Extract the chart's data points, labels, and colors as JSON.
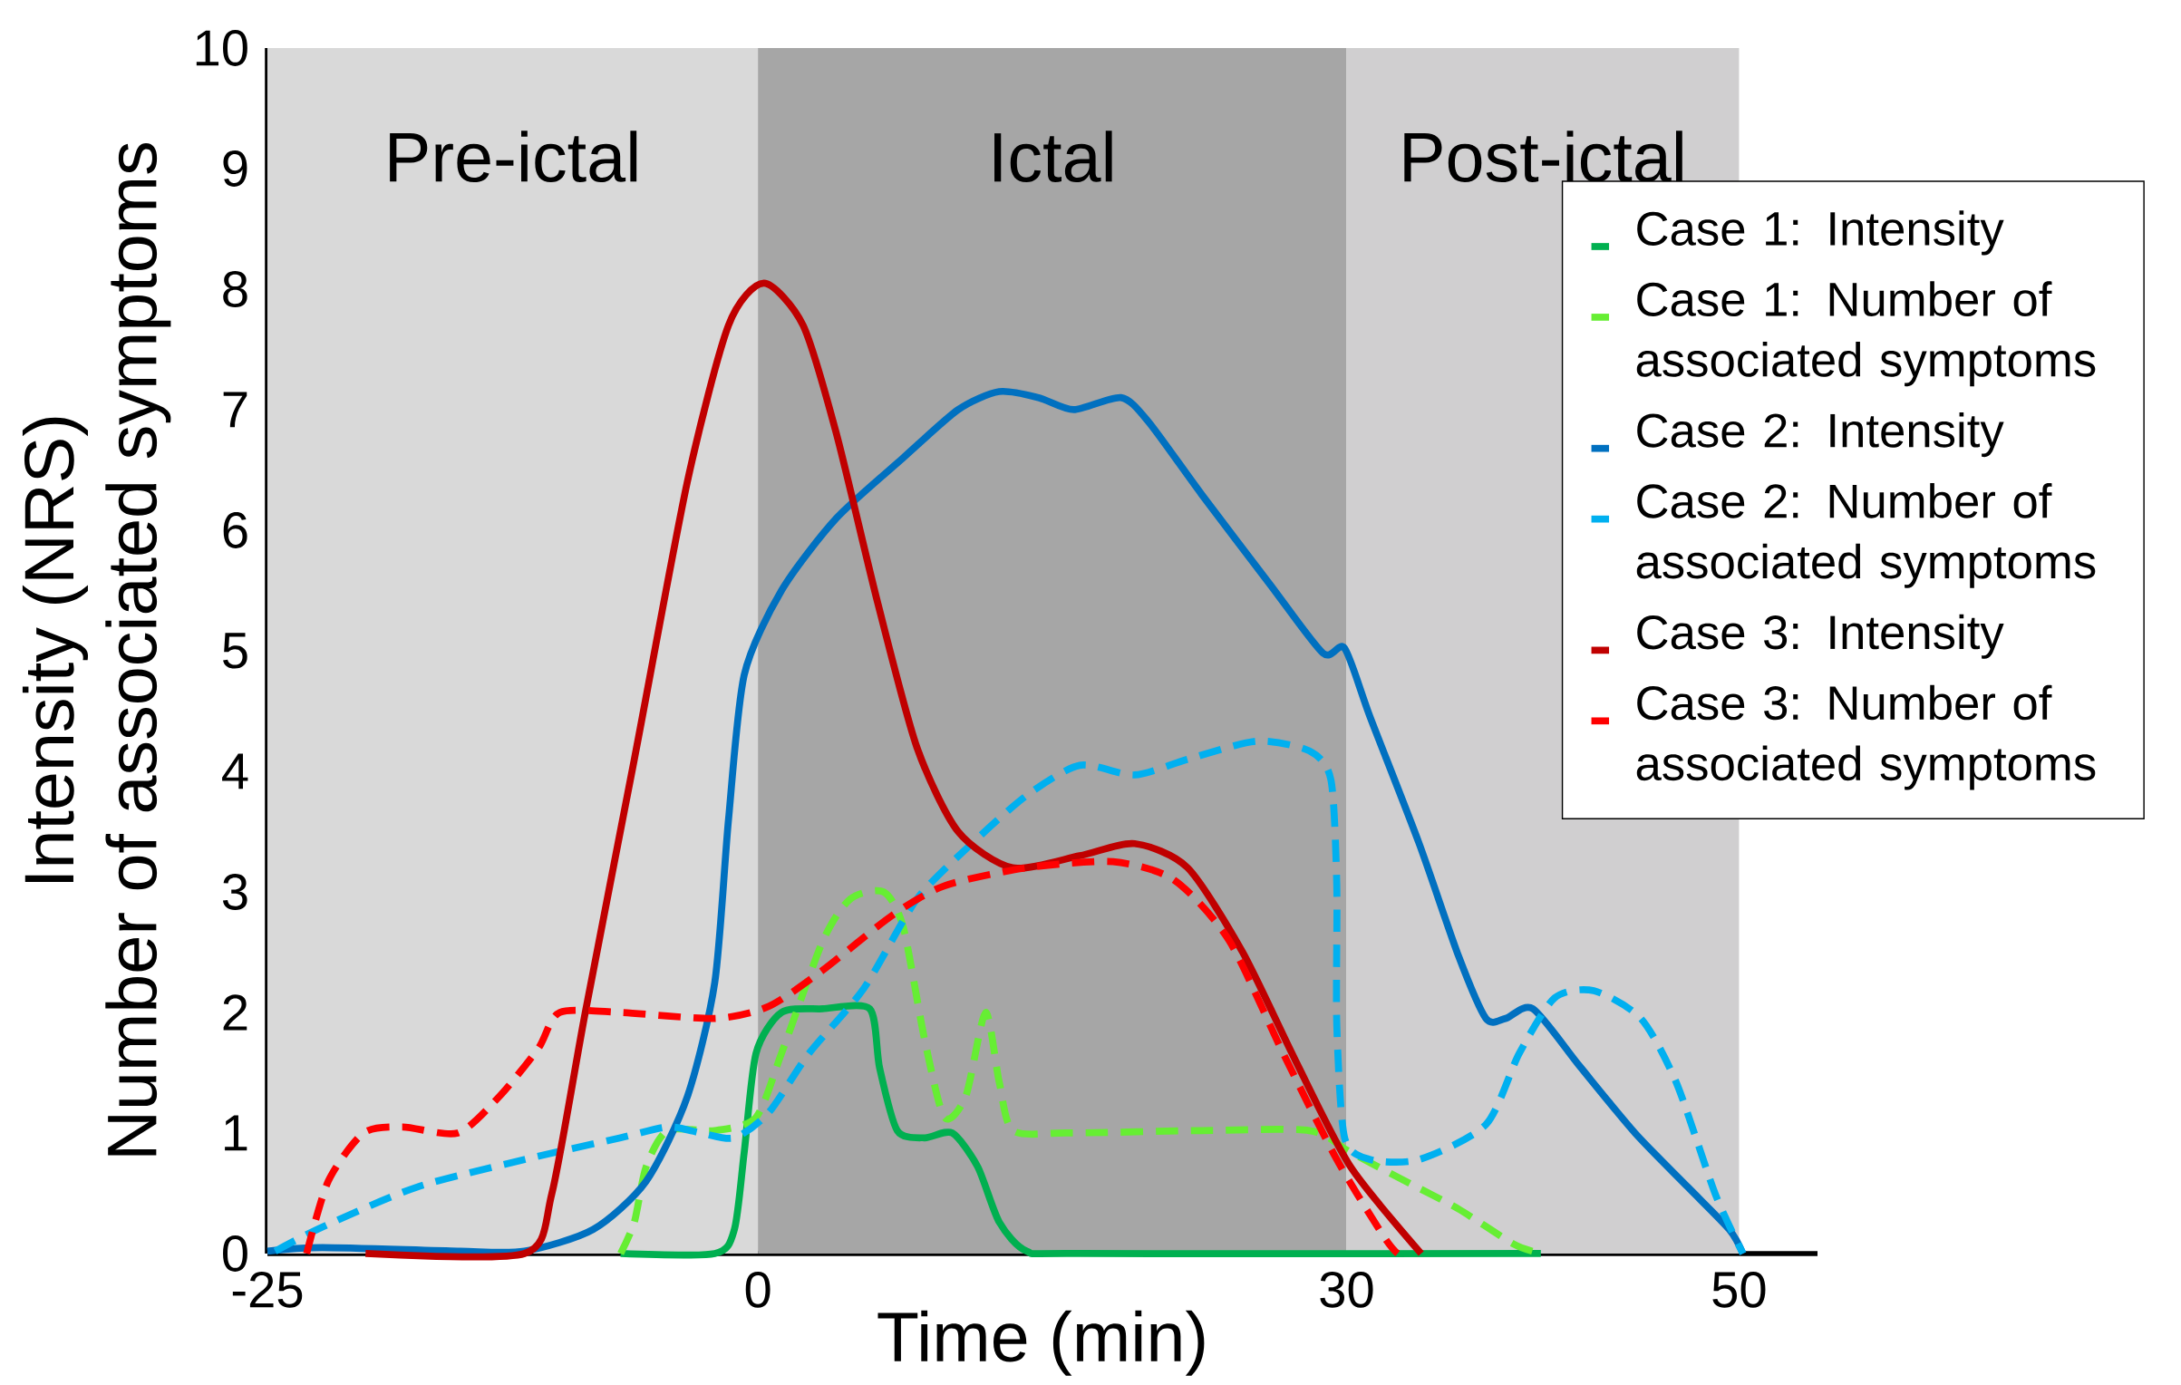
{
  "chart_data": {
    "type": "line",
    "xlabel": "Time (min)",
    "ylabel": [
      "Intensity (NRS)",
      "Number of associated symptoms"
    ],
    "xlim": [
      -25,
      54
    ],
    "ylim": [
      0,
      10
    ],
    "xticks": [
      -25,
      0,
      30,
      50
    ],
    "yticks": [
      0,
      1,
      2,
      3,
      4,
      5,
      6,
      7,
      8,
      9,
      10
    ],
    "legend": "right",
    "grid": false,
    "bands": [
      {
        "axis": "x",
        "from": -25,
        "to": 0,
        "label": "Pre-ictal",
        "color": "#d9d9d9"
      },
      {
        "axis": "x",
        "from": 0,
        "to": 30,
        "label": "Ictal",
        "color": "#a6a6a6"
      },
      {
        "axis": "x",
        "from": 30,
        "to": 50,
        "label": "Post-ictal",
        "color": "#d0cfd0"
      }
    ],
    "series": [
      {
        "name": "Case 1: Intensity",
        "color": "#00b050",
        "line_style": "solid",
        "x": [
          -7,
          -2.2,
          -1.2,
          -0.7,
          -0.1,
          1.2,
          3.3,
          5.7,
          6.2,
          7.1,
          8.5,
          9.9,
          11.2,
          12.3,
          13.7,
          16.4,
          39.9
        ],
        "values": [
          0,
          0,
          0.2,
          0.84,
          1.66,
          2.0,
          2.03,
          2.03,
          1.54,
          1.02,
          0.96,
          1.0,
          0.72,
          0.26,
          0.02,
          0,
          0
        ]
      },
      {
        "name": "Case 1: Number of associated symptoms",
        "color": "#66ee33",
        "line_style": "dashed",
        "x": [
          -7,
          -6.3,
          -5.7,
          -4.6,
          -2.2,
          -0.1,
          1.2,
          3.3,
          4.7,
          6.4,
          7.4,
          8.5,
          9.5,
          10.6,
          11.6,
          12.3,
          13,
          15.7,
          22.6,
          28.1,
          30.2,
          33,
          35.7,
          38.5,
          39.9
        ],
        "values": [
          0,
          0.26,
          0.72,
          1.02,
          1.02,
          1.13,
          1.66,
          2.59,
          2.94,
          3.0,
          2.71,
          1.77,
          1.13,
          1.31,
          2.0,
          1.42,
          1.02,
          1.0,
          1.02,
          1.02,
          0.84,
          0.6,
          0.37,
          0.08,
          0
        ]
      },
      {
        "name": "Case 2: Intensity",
        "color": "#0070c0",
        "line_style": "solid",
        "x": [
          -25,
          -22.2,
          -15.3,
          -11.9,
          -8.4,
          -5.7,
          -3.6,
          -2.2,
          -1.5,
          -0.7,
          1.2,
          4,
          7.4,
          10.2,
          12.3,
          14.3,
          16.1,
          18.5,
          19.9,
          22.6,
          26.1,
          28.8,
          29.9,
          31.2,
          33.7,
          35.7,
          37.1,
          38.1,
          39.5,
          41.9,
          44.7,
          47.4,
          49.5,
          50.2
        ],
        "values": [
          0.02,
          0.05,
          0.02,
          0.02,
          0.2,
          0.6,
          1.3,
          2.25,
          3.6,
          4.8,
          5.5,
          6.1,
          6.6,
          7.0,
          7.15,
          7.1,
          7.0,
          7.1,
          6.9,
          6.3,
          5.55,
          4.98,
          5.02,
          4.45,
          3.4,
          2.47,
          1.95,
          1.95,
          2.03,
          1.55,
          1.0,
          0.55,
          0.2,
          0
        ]
      },
      {
        "name": "Case 2: Number of associated symptoms",
        "color": "#00b0f0",
        "line_style": "dashed",
        "x": [
          -24.6,
          -22.2,
          -17.4,
          -11.9,
          -7,
          -4.6,
          -2.9,
          -1.2,
          0.55,
          2.6,
          5.4,
          8.1,
          10.9,
          13.7,
          16.4,
          19.2,
          21.9,
          25.4,
          28.1,
          29.2,
          29.5,
          29.5,
          29.9,
          31.2,
          33.7,
          37.1,
          38.8,
          40.6,
          42.6,
          45,
          46.8,
          48.8,
          50.2
        ],
        "values": [
          0.02,
          0.22,
          0.55,
          0.78,
          0.96,
          1.05,
          1.0,
          0.96,
          1.17,
          1.66,
          2.2,
          2.94,
          3.4,
          3.8,
          4.05,
          3.97,
          4.1,
          4.25,
          4.17,
          3.93,
          3.06,
          1.9,
          0.96,
          0.78,
          0.78,
          1.07,
          1.66,
          2.12,
          2.18,
          1.95,
          1.42,
          0.49,
          0
        ]
      },
      {
        "name": "Case 3: Intensity",
        "color": "#c00000",
        "line_style": "solid",
        "x": [
          -20,
          -11.9,
          -10.5,
          -8.8,
          -6.3,
          -3.6,
          -1.5,
          0.3,
          2.3,
          4,
          6.1,
          8.1,
          10.2,
          12.97,
          16.4,
          19.2,
          21.9,
          24.7,
          27.4,
          30.2,
          33.8
        ],
        "values": [
          0,
          0,
          0.5,
          2.0,
          4.1,
          6.4,
          7.7,
          8.05,
          7.7,
          6.8,
          5.4,
          4.2,
          3.5,
          3.2,
          3.3,
          3.4,
          3.2,
          2.5,
          1.6,
          0.72,
          0
        ]
      },
      {
        "name": "Case 3: Number of associated symptoms",
        "color": "#ff0000",
        "line_style": "dashed",
        "x": [
          -23,
          -21.9,
          -20.1,
          -18.1,
          -15.3,
          -13.2,
          -11.2,
          -10.1,
          -7,
          -2.2,
          0.55,
          3.3,
          6.8,
          9.5,
          13.7,
          18.1,
          21.2,
          24,
          26.8,
          29.5,
          31.9,
          32.6
        ],
        "values": [
          0,
          0.6,
          1.0,
          1.05,
          1.0,
          1.3,
          1.7,
          2.0,
          2.0,
          1.95,
          2.05,
          2.35,
          2.8,
          3.05,
          3.2,
          3.25,
          3.1,
          2.6,
          1.65,
          0.78,
          0.14,
          0
        ]
      }
    ]
  }
}
